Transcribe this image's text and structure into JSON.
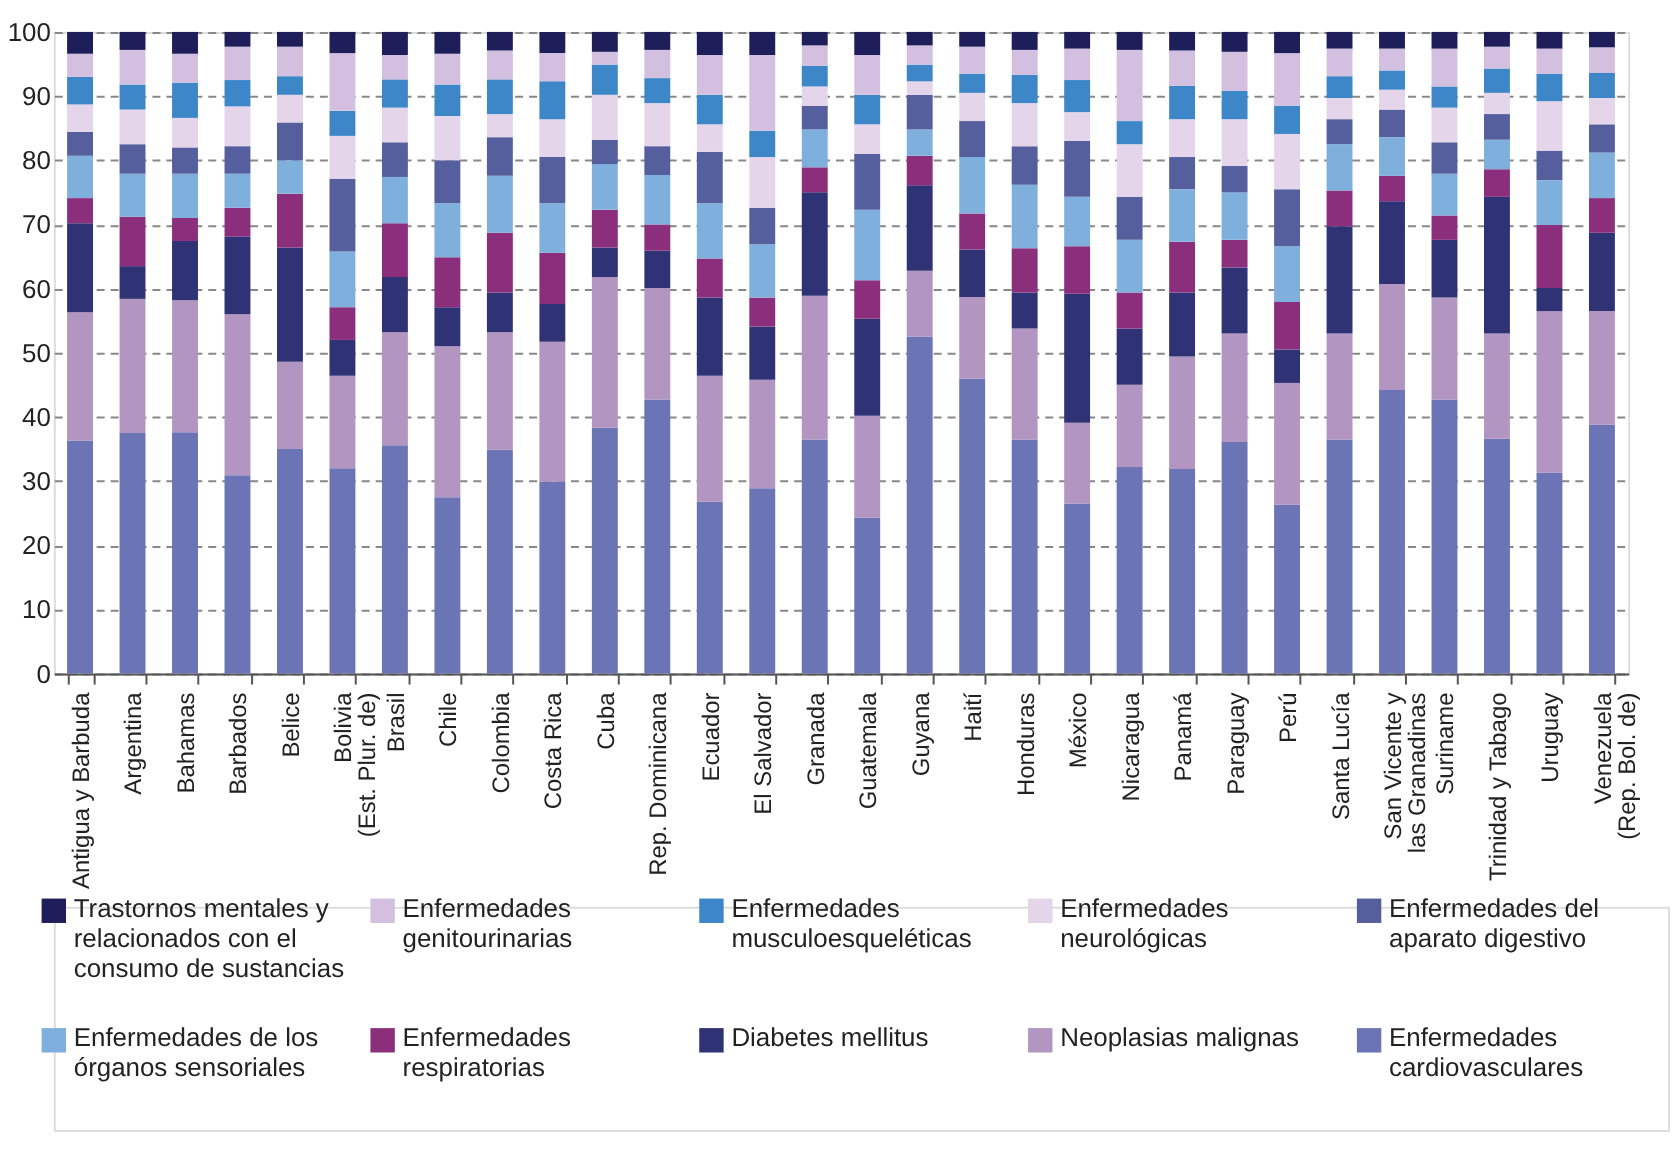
{
  "chart_data": {
    "type": "bar",
    "stacked": true,
    "categories": [
      "Antigua y Barbuda",
      "Argentina",
      "Bahamas",
      "Barbados",
      "Belice",
      "Bolivia (Est. Plur. de)",
      "Brasil",
      "Chile",
      "Colombia",
      "Costa Rica",
      "Cuba",
      "Rep. Dominicana",
      "Ecuador",
      "El Salvador",
      "Granada",
      "Guatemala",
      "Guyana",
      "Haití",
      "Honduras",
      "México",
      "Nicaragua",
      "Panamá",
      "Paraguay",
      "Perú",
      "Santa Lucía",
      "San Vicente y las Granadinas",
      "Suriname",
      "Trinidad y Tabago",
      "Uruguay",
      "Venezuela (Rep. Bol. de)"
    ],
    "series": [
      {
        "name": "Enfermedades cardiovasculares",
        "color": "#6b74b5",
        "values": [
          36.3,
          37.5,
          37.6,
          30.9,
          35.0,
          32.0,
          35.6,
          27.5,
          34.9,
          29.9,
          38.3,
          42.7,
          26.8,
          28.9,
          36.5,
          24.3,
          52.5,
          46.0,
          36.5,
          26.5,
          32.2,
          31.9,
          36.1,
          26.3,
          36.5,
          44.2,
          42.7,
          36.6,
          31.3,
          38.8
        ]
      },
      {
        "name": "Neoplasias malignas",
        "color": "#b395c1",
        "values": [
          20.0,
          20.9,
          20.6,
          25.1,
          13.6,
          14.4,
          17.6,
          23.5,
          18.3,
          21.8,
          23.5,
          17.4,
          19.6,
          16.9,
          22.4,
          15.9,
          10.3,
          12.7,
          17.3,
          12.6,
          12.8,
          17.5,
          16.9,
          19.0,
          16.5,
          16.5,
          15.9,
          16.4,
          25.2,
          17.7
        ]
      },
      {
        "name": "Diabetes mellitus",
        "color": "#2f3275",
        "values": [
          13.9,
          5.1,
          9.2,
          12.1,
          17.8,
          5.6,
          8.6,
          6.1,
          6.2,
          5.9,
          4.6,
          5.8,
          12.2,
          8.3,
          16.1,
          15.1,
          13.3,
          7.4,
          5.6,
          20.1,
          8.8,
          10.0,
          10.3,
          5.2,
          16.7,
          12.9,
          9.0,
          21.3,
          3.6,
          12.2
        ]
      },
      {
        "name": "Enfermedades respiratorias",
        "color": "#8b2f7d",
        "values": [
          3.9,
          7.7,
          3.6,
          4.5,
          8.4,
          5.1,
          8.4,
          7.8,
          9.3,
          8.0,
          5.9,
          4.1,
          6.1,
          4.5,
          3.9,
          6.0,
          4.6,
          5.6,
          6.9,
          7.4,
          5.6,
          7.9,
          4.3,
          7.4,
          5.6,
          4.0,
          3.8,
          4.3,
          9.8,
          5.4
        ]
      },
      {
        "name": "Enfermedades de los órganos sensoriales",
        "color": "#7fb0dd",
        "values": [
          6.6,
          6.7,
          6.9,
          5.3,
          5.2,
          8.7,
          7.2,
          8.4,
          8.9,
          7.7,
          7.1,
          7.7,
          8.6,
          8.3,
          5.9,
          11.0,
          4.1,
          8.8,
          9.9,
          7.7,
          8.2,
          8.2,
          7.4,
          8.7,
          7.2,
          6.0,
          6.5,
          4.6,
          7.0,
          7.1
        ]
      },
      {
        "name": "Enfermedades del aparato digestivo",
        "color": "#565f9d",
        "values": [
          3.7,
          4.6,
          4.1,
          4.3,
          5.9,
          11.3,
          5.4,
          6.7,
          6.0,
          7.2,
          3.8,
          4.5,
          8.0,
          5.7,
          3.7,
          8.7,
          5.4,
          5.6,
          6.0,
          8.7,
          6.7,
          5.0,
          4.1,
          8.9,
          3.9,
          4.3,
          4.9,
          4.0,
          4.6,
          4.4
        ]
      },
      {
        "name": "Enfermedades neurológicas",
        "color": "#e4d5ea",
        "values": [
          4.3,
          5.4,
          4.6,
          6.2,
          4.3,
          6.7,
          5.4,
          6.9,
          3.6,
          5.9,
          7.0,
          6.7,
          4.3,
          7.9,
          3.0,
          4.6,
          2.1,
          4.4,
          6.7,
          4.5,
          8.2,
          5.9,
          7.3,
          8.6,
          3.3,
          3.1,
          5.4,
          3.3,
          7.7,
          4.1
        ]
      },
      {
        "name": "Enfermedades musculoesqueléticas",
        "color": "#3d87c8",
        "values": [
          4.3,
          3.9,
          5.5,
          4.1,
          2.9,
          3.9,
          4.4,
          4.9,
          5.4,
          5.9,
          4.7,
          3.9,
          4.6,
          4.1,
          3.2,
          4.6,
          2.6,
          3.0,
          4.4,
          5.0,
          3.6,
          5.2,
          4.4,
          4.4,
          3.4,
          3.0,
          3.3,
          3.8,
          4.3,
          3.9
        ]
      },
      {
        "name": "Enfermedades genitourinarias",
        "color": "#d3bfdf",
        "values": [
          3.6,
          5.4,
          4.5,
          5.2,
          4.6,
          9.0,
          3.8,
          4.8,
          4.5,
          4.4,
          2.0,
          4.4,
          6.2,
          11.8,
          3.2,
          6.2,
          3.0,
          4.2,
          3.9,
          4.9,
          11.1,
          5.5,
          6.1,
          8.2,
          4.3,
          3.4,
          5.9,
          3.4,
          3.9,
          4.0
        ]
      },
      {
        "name": "Trastornos mentales y relacionados con el consumo de sustancias",
        "color": "#1e1e5a",
        "values": [
          3.4,
          2.8,
          3.4,
          2.3,
          2.3,
          3.3,
          3.6,
          3.4,
          2.9,
          3.3,
          3.1,
          2.8,
          3.6,
          3.6,
          2.1,
          3.6,
          2.1,
          2.3,
          2.8,
          2.6,
          2.8,
          2.9,
          3.1,
          3.3,
          2.6,
          2.6,
          2.6,
          2.3,
          2.6,
          2.4
        ]
      }
    ],
    "ylim": [
      0,
      100
    ],
    "yticks": [
      0,
      10,
      20,
      30,
      40,
      50,
      60,
      70,
      80,
      90,
      100
    ],
    "grid": "y",
    "legend": "bottom"
  }
}
